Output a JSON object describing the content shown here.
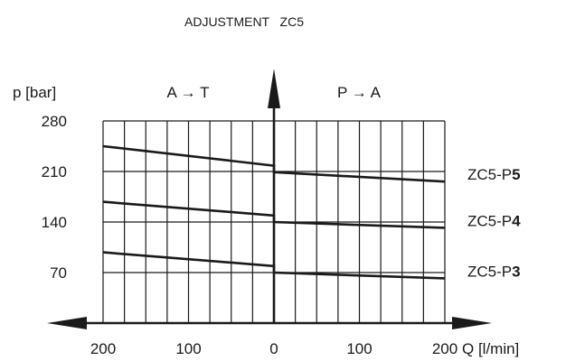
{
  "chart_data": {
    "type": "line",
    "title": "ADJUSTMENT   ZC5",
    "ylabel": "p [bar]",
    "xlabel": "Q [l/min]",
    "direction_left": "A → T",
    "direction_right": "P → A",
    "ylim": [
      0,
      280
    ],
    "xlim": [
      -200,
      200
    ],
    "y_ticks": [
      70,
      140,
      210,
      280
    ],
    "y_tick_labels": [
      "70",
      "140",
      "210",
      "280"
    ],
    "x_ticks": [
      -200,
      -100,
      0,
      100,
      200
    ],
    "x_tick_labels": [
      "200",
      "100",
      "0",
      "100",
      "200"
    ],
    "grid": true,
    "series": [
      {
        "name_prefix": "ZC5-P",
        "name_suffix": "5",
        "x": [
          -200,
          0,
          0,
          200
        ],
        "y": [
          245,
          218,
          209,
          196
        ]
      },
      {
        "name_prefix": "ZC5-P",
        "name_suffix": "4",
        "x": [
          -200,
          0,
          0,
          200
        ],
        "y": [
          168,
          149,
          140,
          132
        ]
      },
      {
        "name_prefix": "ZC5-P",
        "name_suffix": "3",
        "x": [
          -200,
          0,
          0,
          200
        ],
        "y": [
          98,
          79,
          70,
          62
        ]
      }
    ]
  }
}
